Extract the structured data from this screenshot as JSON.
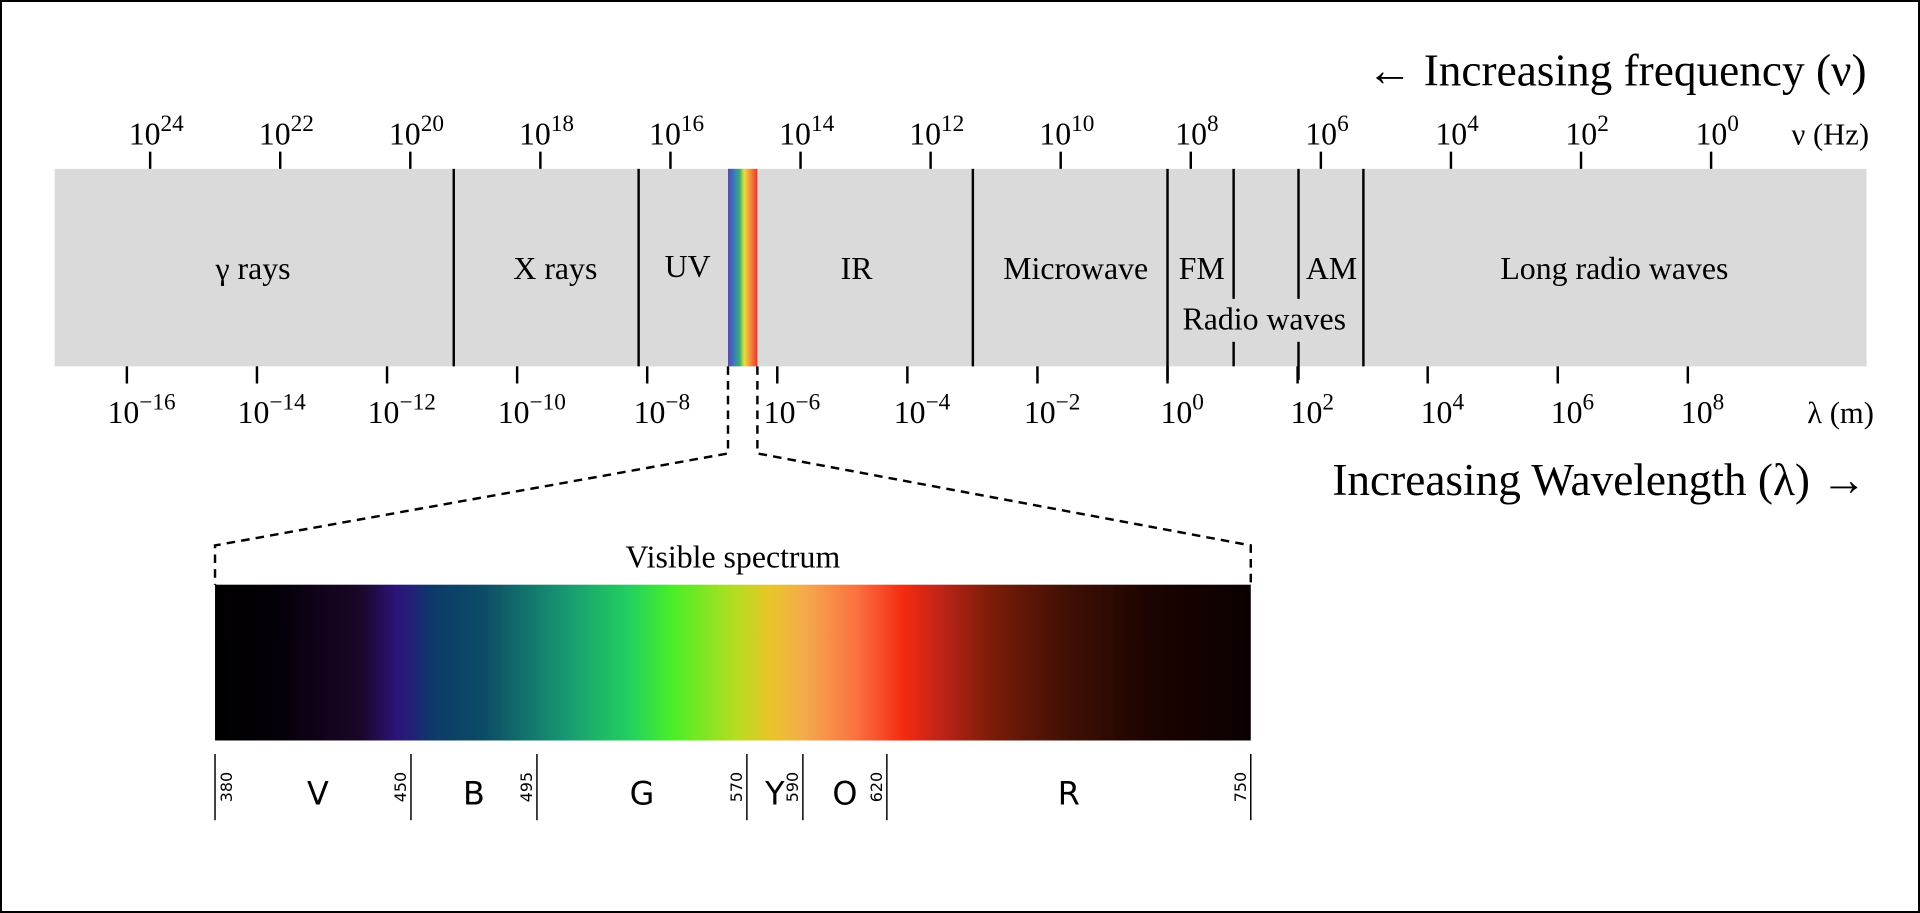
{
  "header": {
    "frequency_direction": "← Increasing frequency (ν)",
    "wavelength_direction": "Increasing Wavelength (λ) →"
  },
  "frequency_axis": {
    "unit_label": "ν (Hz)",
    "base": "10",
    "exponents": [
      "24",
      "22",
      "20",
      "18",
      "16",
      "14",
      "12",
      "10",
      "8",
      "6",
      "4",
      "2",
      "0"
    ]
  },
  "wavelength_axis": {
    "unit_label": "λ (m)",
    "base": "10",
    "exponents": [
      "−16",
      "−14",
      "−12",
      "−10",
      "−8",
      "−6",
      "−4",
      "−2",
      "0",
      "2",
      "4",
      "6",
      "8"
    ]
  },
  "regions": {
    "gamma": "γ rays",
    "xray": "X rays",
    "uv": "UV",
    "ir": "IR",
    "microwave": "Microwave",
    "fm": "FM",
    "am": "AM",
    "radio": "Radio waves",
    "long_radio": "Long radio waves"
  },
  "visible": {
    "title": "Visible spectrum",
    "boundaries_nm": [
      "380",
      "450",
      "495",
      "570",
      "590",
      "620",
      "750"
    ],
    "bands": [
      "V",
      "B",
      "G",
      "Y",
      "O",
      "R"
    ]
  },
  "colors": {
    "band_background": "#dadada",
    "line": "#000000"
  }
}
